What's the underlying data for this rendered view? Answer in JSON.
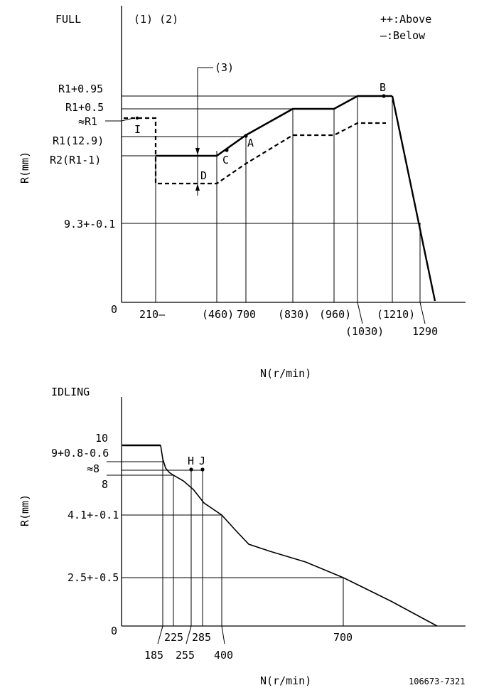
{
  "full": {
    "title": "FULL",
    "markers_top": "(1) (2)",
    "legend": {
      "above": "++:Above",
      "below": "—:Below"
    },
    "ylabel": "R(mm)",
    "xlabel": "N(r/min)",
    "origin": "0",
    "y_labels": [
      "R1+0.95",
      "R1+0.5",
      "≈R1",
      "R1(12.9)",
      "R2(R1-1)",
      "9.3+-0.1"
    ],
    "x_labels": [
      "210—",
      "(460)",
      "700",
      "(830)",
      "(960)",
      "(1030)",
      "(1210)",
      "1290"
    ],
    "callout": "(3)",
    "points": {
      "A": "A",
      "B": "B",
      "C": "C",
      "D": "D",
      "I": "I"
    }
  },
  "idling": {
    "title": "IDLING",
    "ylabel": "R(mm)",
    "xlabel": "N(r/min)",
    "origin": "0",
    "y_labels": [
      "10",
      "9+0.8-0.6",
      "≈8",
      "8",
      "4.1+-0.1",
      "2.5+-0.5"
    ],
    "x_labels": [
      "185",
      "225",
      "255",
      "285",
      "400",
      "700"
    ],
    "points": {
      "H": "H",
      "J": "J"
    }
  },
  "doc_number": "106673-7321"
}
